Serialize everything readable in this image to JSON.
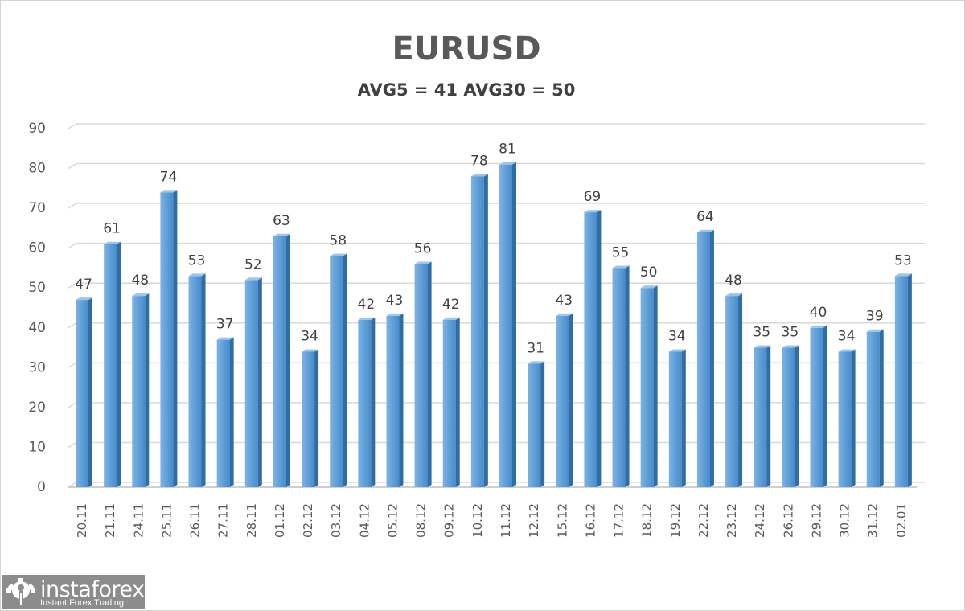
{
  "chart_data": {
    "type": "bar",
    "title": "EURUSD",
    "subtitle": "AVG5 = 41 AVG30 = 50",
    "xlabel": "",
    "ylabel": "",
    "ylim": [
      0,
      90
    ],
    "yticks": [
      0,
      10,
      20,
      30,
      40,
      50,
      60,
      70,
      80,
      90
    ],
    "grid": true,
    "legend": "none",
    "categories": [
      "20.11",
      "21.11",
      "24.11",
      "25.11",
      "26.11",
      "27.11",
      "28.11",
      "01.12",
      "02.12",
      "03.12",
      "04.12",
      "05.12",
      "08.12",
      "09.12",
      "10.12",
      "11.12",
      "12.12",
      "15.12",
      "16.12",
      "17.12",
      "18.12",
      "19.12",
      "22.12",
      "23.12",
      "24.12",
      "26.12",
      "29.12",
      "30.12",
      "31.12",
      "02.01"
    ],
    "values": [
      47,
      61,
      48,
      74,
      53,
      37,
      52,
      63,
      34,
      58,
      42,
      43,
      56,
      42,
      78,
      81,
      31,
      43,
      69,
      55,
      50,
      34,
      64,
      48,
      35,
      35,
      40,
      34,
      39,
      53
    ],
    "bar_color": "#5b9bd5"
  },
  "header": {
    "title": "EURUSD",
    "subtitle": "AVG5 = 41 AVG30 = 50"
  },
  "watermark": {
    "brand": "instaforex",
    "tagline": "Instant Forex Trading"
  }
}
